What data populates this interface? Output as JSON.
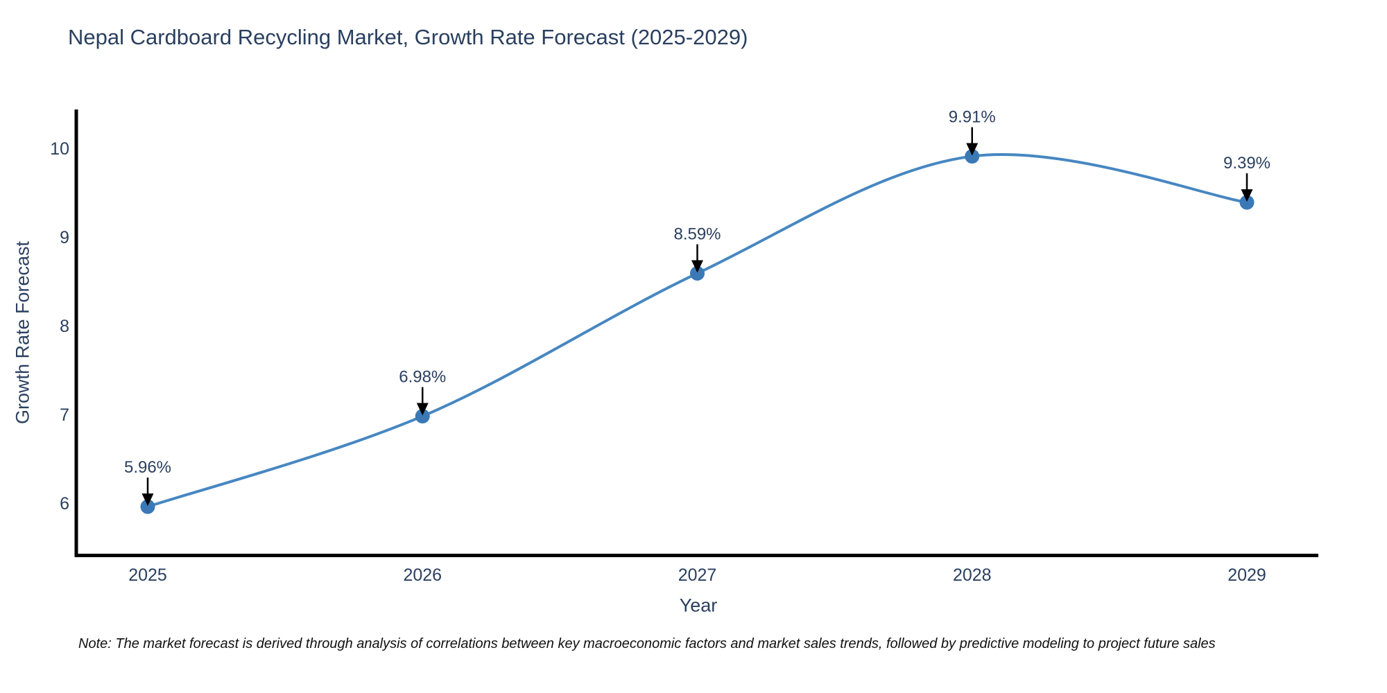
{
  "title": "Nepal Cardboard Recycling Market, Growth Rate Forecast (2025-2029)",
  "note": "Note: The market forecast is derived through analysis of correlations between key macroeconomic factors and market sales trends, followed by predictive modeling to project future sales",
  "chart_data": {
    "type": "line",
    "title": "Nepal Cardboard Recycling Market, Growth Rate Forecast (2025-2029)",
    "xlabel": "Year",
    "ylabel": "Growth Rate Forecast",
    "x": [
      2025,
      2026,
      2027,
      2028,
      2029
    ],
    "y": [
      5.96,
      6.98,
      8.59,
      9.91,
      9.39
    ],
    "point_labels": [
      "5.96%",
      "6.98%",
      "8.59%",
      "9.91%",
      "9.39%"
    ],
    "x_ticks": [
      "2025",
      "2026",
      "2027",
      "2028",
      "2029"
    ],
    "y_ticks": [
      6,
      7,
      8,
      9,
      10
    ],
    "xlim": [
      2024.74,
      2029.26
    ],
    "ylim": [
      5.4,
      10.4
    ],
    "line_shape": "spline",
    "markers": true,
    "grid": false,
    "legend": false,
    "annotations_have_arrows": true,
    "colors": {
      "line": "#4787c1",
      "marker": "#3a79b5",
      "axis": "#000000",
      "text": "#2a3f5f",
      "arrow": "#000000"
    }
  }
}
